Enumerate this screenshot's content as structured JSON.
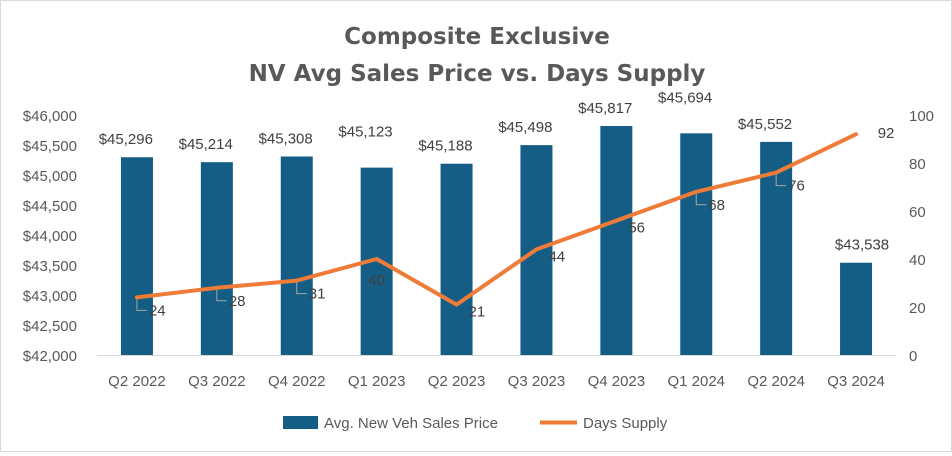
{
  "chart_data": {
    "type": "bar+line",
    "title": [
      "Composite Exclusive",
      "NV Avg Sales Price vs. Days Supply"
    ],
    "categories": [
      "Q2 2022",
      "Q3 2022",
      "Q4 2022",
      "Q1 2023",
      "Q2 2023",
      "Q3 2023",
      "Q4 2023",
      "Q1 2024",
      "Q2 2024",
      "Q3 2024"
    ],
    "series": [
      {
        "name": "Avg. New Veh Sales Price",
        "type": "bar",
        "axis": "left",
        "color": "#145d84",
        "values": [
          45296,
          45214,
          45308,
          45123,
          45188,
          45498,
          45817,
          45694,
          45552,
          43538
        ],
        "labels": [
          "$45,296",
          "$45,214",
          "$45,308",
          "$45,123",
          "$45,188",
          "$45,498",
          "$45,817",
          "$45,694",
          "$45,552",
          "$43,538"
        ]
      },
      {
        "name": "Days Supply",
        "type": "line",
        "axis": "right",
        "color": "#ee7b37",
        "values": [
          24,
          28,
          31,
          40,
          21,
          44,
          56,
          68,
          76,
          92
        ],
        "labels": [
          "24",
          "28",
          "31",
          "40",
          "21",
          "44",
          "56",
          "68",
          "76",
          "92"
        ]
      }
    ],
    "y_left": {
      "min": 42000,
      "max": 46000,
      "ticks": [
        "$42,000",
        "$42,500",
        "$43,000",
        "$43,500",
        "$44,000",
        "$44,500",
        "$45,000",
        "$45,500",
        "$46,000"
      ]
    },
    "y_right": {
      "min": 0,
      "max": 100,
      "ticks": [
        "0",
        "20",
        "40",
        "60",
        "80",
        "100"
      ]
    },
    "grid": false,
    "legend": "bottom"
  }
}
